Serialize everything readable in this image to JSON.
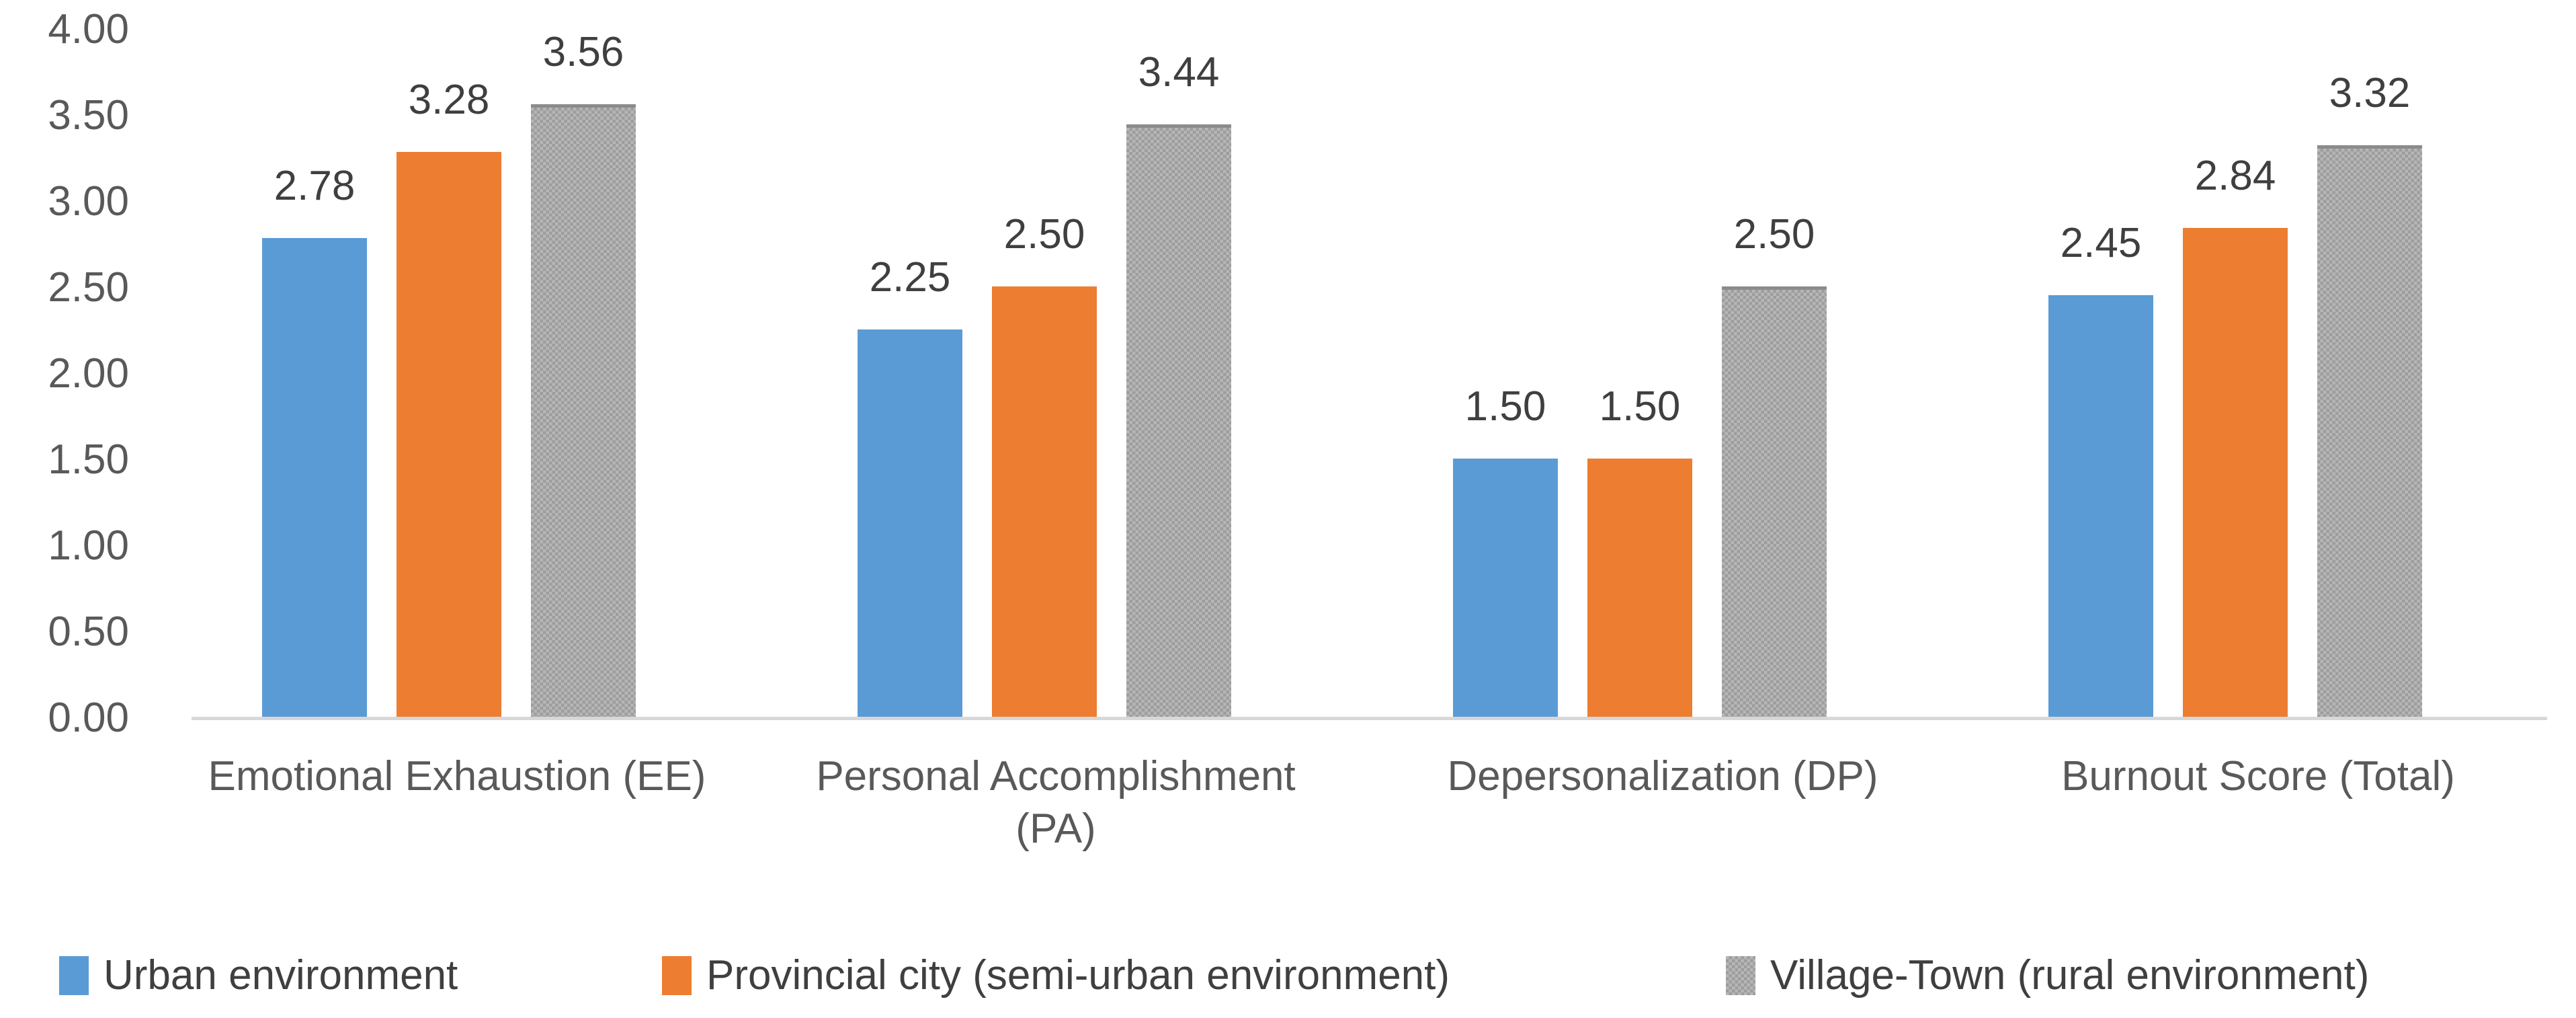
{
  "chart_data": {
    "type": "bar",
    "categories": [
      "Emotional Exhaustion (EE)",
      "Personal Accomplishment (PA)",
      "Depersonalization (DP)",
      "Burnout Score (Total)"
    ],
    "series": [
      {
        "name": "Urban environment",
        "color": "#5b9bd5",
        "pattern": false,
        "values": [
          2.78,
          2.25,
          1.5,
          2.45
        ],
        "labels": [
          "2.78",
          "2.25",
          "1.50",
          "2.45"
        ]
      },
      {
        "name": "Provincial city (semi-urban environment)",
        "color": "#ed7d31",
        "pattern": false,
        "values": [
          3.28,
          2.5,
          1.5,
          2.84
        ],
        "labels": [
          "3.28",
          "2.50",
          "1.50",
          "2.84"
        ]
      },
      {
        "name": "Village-Town (rural environment)",
        "color": "#a6a6a6",
        "pattern": true,
        "values": [
          3.56,
          3.44,
          2.5,
          3.32
        ],
        "labels": [
          "3.56",
          "3.44",
          "2.50",
          "3.32"
        ]
      }
    ],
    "y_ticks": [
      "4.00",
      "3.50",
      "3.00",
      "2.50",
      "2.00",
      "1.50",
      "1.00",
      "0.50",
      "0.00"
    ],
    "ylim": [
      0,
      4
    ],
    "y_tick_step": 0.5,
    "title": "",
    "xlabel": "",
    "ylabel": "",
    "grid": false,
    "legend_position": "bottom",
    "data_labels_shown": true
  },
  "colors": {
    "background": "#ffffff",
    "axis_line": "#d8d8d8",
    "tick_text": "#595959",
    "category_text": "#595959",
    "value_label_text": "#3f3f3f",
    "legend_text": "#3f3f3f",
    "pattern_base": "#b3b3b3",
    "pattern_dot": "#9d9d9d",
    "pattern_cap": "#8b8b8b"
  }
}
